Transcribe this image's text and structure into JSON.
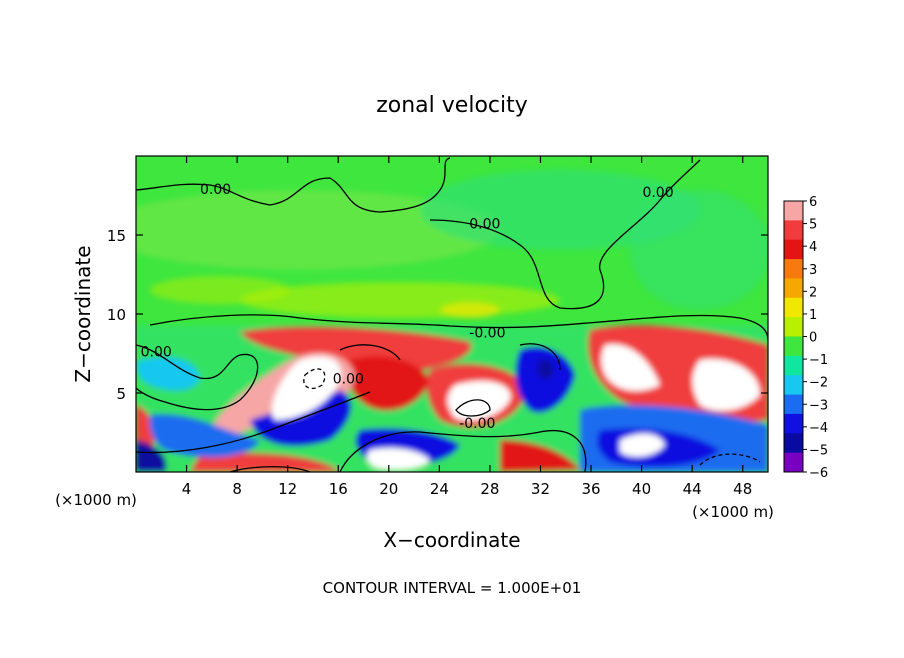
{
  "chart_data": {
    "type": "heatmap",
    "title": "zonal velocity",
    "xlabel": "X−coordinate",
    "ylabel": "Z−coordinate",
    "x_unit_left": "(×1000 m)",
    "x_unit_right": "(×1000 m)",
    "footer": "CONTOUR INTERVAL = 1.000E+01",
    "xlim": [
      0,
      50
    ],
    "ylim": [
      0,
      20
    ],
    "x_ticks": [
      4,
      8,
      12,
      16,
      20,
      24,
      28,
      32,
      36,
      40,
      44,
      48
    ],
    "x_tick_labels": [
      "4",
      "8",
      "12",
      "16",
      "20",
      "24",
      "28",
      "32",
      "36",
      "40",
      "44",
      "48"
    ],
    "y_ticks": [
      5,
      10,
      15
    ],
    "y_tick_labels": [
      "5",
      "10",
      "15"
    ],
    "contour_labels": [
      {
        "text": "0.00",
        "x": 6.3,
        "y": 17.6
      },
      {
        "text": "0.00",
        "x": 27.6,
        "y": 15.4
      },
      {
        "text": "0.00",
        "x": 41.3,
        "y": 17.4
      },
      {
        "text": "-0.00",
        "x": 27.8,
        "y": 8.5
      },
      {
        "text": "0.00",
        "x": 1.6,
        "y": 7.3
      },
      {
        "text": "0.00",
        "x": 16.8,
        "y": 5.6
      },
      {
        "text": "-0.00",
        "x": 27.0,
        "y": 2.8
      }
    ],
    "colorbar": {
      "levels": [
        6,
        5,
        4,
        3,
        2,
        1,
        0,
        -1,
        -2,
        -3,
        -4,
        -5,
        -6
      ],
      "labels": [
        "6",
        "5",
        "4",
        "3",
        "2",
        "1",
        "0",
        "−1",
        "−2",
        "−3",
        "−4",
        "−5",
        "−6"
      ],
      "colors": [
        "#f7a6a6",
        "#f03c3c",
        "#e21414",
        "#f77a10",
        "#f6a800",
        "#f0e800",
        "#b8f000",
        "#3ee63e",
        "#10e6a0",
        "#18c8f0",
        "#1a6cf0",
        "#1010e0",
        "#0a0aa0",
        "#7800c0"
      ]
    },
    "field_description_grid": "approximate"
  }
}
